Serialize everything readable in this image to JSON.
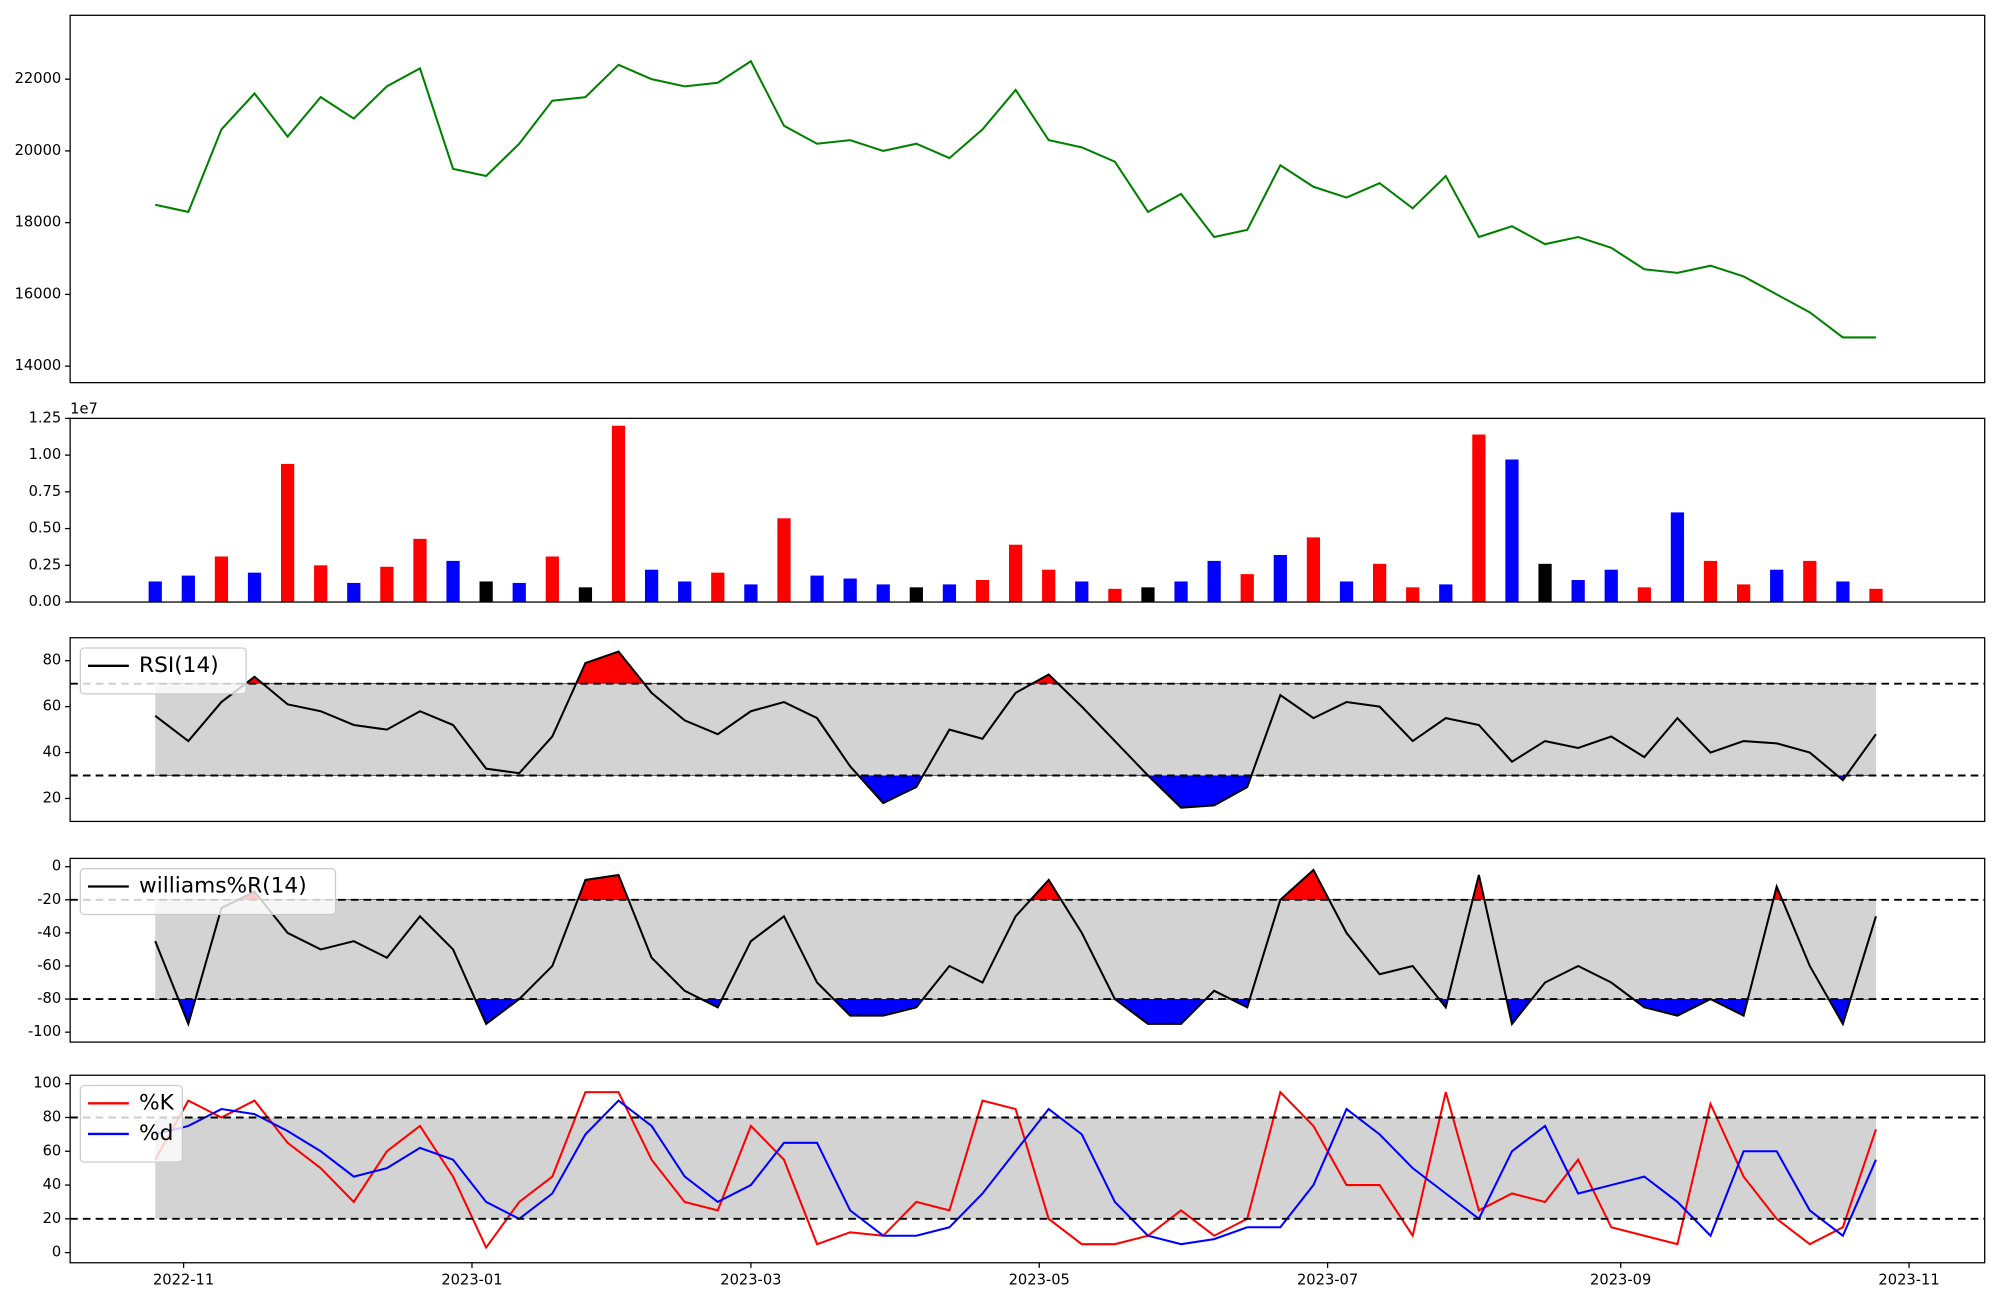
{
  "chart_data": [
    {
      "type": "line",
      "x": [
        19291,
        19298,
        19305,
        19312,
        19319,
        19326,
        19333,
        19340,
        19347,
        19354,
        19361,
        19368,
        19375,
        19382,
        19389,
        19396,
        19403,
        19410,
        19417,
        19424,
        19431,
        19438,
        19445,
        19452,
        19459,
        19466,
        19473,
        19480,
        19487,
        19494,
        19501,
        19508,
        19515,
        19522,
        19529,
        19536,
        19543,
        19550,
        19557,
        19564,
        19571,
        19578,
        19585,
        19592,
        19599,
        19606,
        19613,
        19620,
        19627,
        19634,
        19641,
        19648,
        19655
      ],
      "series": [
        {
          "color": "green",
          "values": [
            18500,
            18300,
            20600,
            21600,
            20400,
            21500,
            20900,
            21800,
            22300,
            19500,
            19300,
            20200,
            21400,
            21500,
            22400,
            22000,
            21800,
            21900,
            22500,
            20700,
            20200,
            20300,
            20000,
            20200,
            19800,
            20600,
            21700,
            20300,
            20100,
            19700,
            18300,
            18800,
            17600,
            17800,
            19600,
            19000,
            18700,
            19100,
            18400,
            19300,
            17600,
            17900,
            17400,
            17600,
            17300,
            16700,
            16600,
            16800,
            16500,
            16000,
            15500,
            14800,
            14800
          ]
        }
      ],
      "xlim": [
        19273,
        19678
      ],
      "ylim": [
        13540,
        23780
      ],
      "yticks": [
        14000,
        16000,
        18000,
        20000,
        22000
      ]
    },
    {
      "type": "bar",
      "x": [
        19291,
        19298,
        19305,
        19312,
        19319,
        19326,
        19333,
        19340,
        19347,
        19354,
        19361,
        19368,
        19375,
        19382,
        19389,
        19396,
        19403,
        19410,
        19417,
        19424,
        19431,
        19438,
        19445,
        19452,
        19459,
        19466,
        19473,
        19480,
        19487,
        19494,
        19501,
        19508,
        19515,
        19522,
        19529,
        19536,
        19543,
        19550,
        19557,
        19564,
        19571,
        19578,
        19585,
        19592,
        19599,
        19606,
        19613,
        19620,
        19627,
        19634,
        19641,
        19648,
        19655
      ],
      "values": [
        0.14,
        0.18,
        0.31,
        0.2,
        0.94,
        0.25,
        0.13,
        0.24,
        0.43,
        0.28,
        0.14,
        0.13,
        0.31,
        0.1,
        1.2,
        0.22,
        0.14,
        0.2,
        0.12,
        0.57,
        0.18,
        0.16,
        0.12,
        0.1,
        0.12,
        0.15,
        0.39,
        0.22,
        0.14,
        0.09,
        0.1,
        0.14,
        0.28,
        0.19,
        0.32,
        0.44,
        0.14,
        0.26,
        0.1,
        0.12,
        1.14,
        0.97,
        0.26,
        0.15,
        0.22,
        0.1,
        0.61,
        0.28,
        0.12,
        0.22,
        0.28,
        0.14,
        0.09
      ],
      "colors": [
        "blue",
        "blue",
        "red",
        "blue",
        "red",
        "red",
        "blue",
        "red",
        "red",
        "blue",
        "black",
        "blue",
        "red",
        "black",
        "red",
        "blue",
        "blue",
        "red",
        "blue",
        "red",
        "blue",
        "blue",
        "blue",
        "black",
        "blue",
        "red",
        "red",
        "red",
        "blue",
        "red",
        "black",
        "blue",
        "blue",
        "red",
        "blue",
        "red",
        "blue",
        "red",
        "red",
        "blue",
        "red",
        "blue",
        "black",
        "blue",
        "blue",
        "red",
        "blue",
        "red",
        "red",
        "blue",
        "red",
        "blue",
        "red"
      ],
      "offset_label": "1e7",
      "xlim": [
        19273,
        19678
      ],
      "ylim": [
        0,
        1.25
      ],
      "yticks": [
        {
          "value": 0,
          "label": "0.00"
        },
        0.25,
        {
          "value": 0.5,
          "label": "0.50"
        },
        0.75,
        {
          "value": 1,
          "label": "1.00"
        },
        1.25
      ]
    },
    {
      "type": "line",
      "x": [
        19291,
        19298,
        19305,
        19312,
        19319,
        19326,
        19333,
        19340,
        19347,
        19354,
        19361,
        19368,
        19375,
        19382,
        19389,
        19396,
        19403,
        19410,
        19417,
        19424,
        19431,
        19438,
        19445,
        19452,
        19459,
        19466,
        19473,
        19480,
        19487,
        19494,
        19501,
        19508,
        19515,
        19522,
        19529,
        19536,
        19543,
        19550,
        19557,
        19564,
        19571,
        19578,
        19585,
        19592,
        19599,
        19606,
        19613,
        19620,
        19627,
        19634,
        19641,
        19648,
        19655
      ],
      "series": [
        {
          "name": "RSI(14)",
          "color": "black",
          "values": [
            56,
            45,
            62,
            73,
            61,
            58,
            52,
            50,
            58,
            52,
            33,
            31,
            47,
            79,
            84,
            66,
            54,
            48,
            58,
            62,
            55,
            34,
            18,
            25,
            50,
            46,
            66,
            74,
            60,
            45,
            30,
            16,
            17,
            25,
            65,
            55,
            62,
            60,
            45,
            55,
            52,
            36,
            45,
            42,
            47,
            38,
            55,
            40,
            45,
            44,
            40,
            28,
            48
          ]
        }
      ],
      "levels": [
        30,
        70
      ],
      "band_color": "lightgray",
      "over_color": "red",
      "under_color": "blue",
      "legend": "upper left",
      "xlim": [
        19273,
        19678
      ],
      "ylim": [
        10,
        90
      ],
      "yticks": [
        20,
        40,
        60,
        80
      ]
    },
    {
      "type": "line",
      "x": [
        19291,
        19298,
        19305,
        19312,
        19319,
        19326,
        19333,
        19340,
        19347,
        19354,
        19361,
        19368,
        19375,
        19382,
        19389,
        19396,
        19403,
        19410,
        19417,
        19424,
        19431,
        19438,
        19445,
        19452,
        19459,
        19466,
        19473,
        19480,
        19487,
        19494,
        19501,
        19508,
        19515,
        19522,
        19529,
        19536,
        19543,
        19550,
        19557,
        19564,
        19571,
        19578,
        19585,
        19592,
        19599,
        19606,
        19613,
        19620,
        19627,
        19634,
        19641,
        19648,
        19655
      ],
      "series": [
        {
          "name": "williams%R(14)",
          "color": "black",
          "values": [
            -45,
            -95,
            -25,
            -15,
            -40,
            -50,
            -45,
            -55,
            -30,
            -50,
            -95,
            -80,
            -60,
            -8,
            -5,
            -55,
            -75,
            -85,
            -45,
            -30,
            -70,
            -90,
            -90,
            -85,
            -60,
            -70,
            -30,
            -8,
            -40,
            -80,
            -95,
            -95,
            -75,
            -85,
            -20,
            -2,
            -40,
            -65,
            -60,
            -85,
            -5,
            -95,
            -70,
            -60,
            -70,
            -85,
            -90,
            -80,
            -90,
            -12,
            -60,
            -95,
            -30
          ]
        }
      ],
      "levels": [
        -80,
        -20
      ],
      "band_color": "lightgray",
      "over_color": "red",
      "under_color": "blue",
      "legend": "upper left",
      "xlim": [
        19273,
        19678
      ],
      "ylim": [
        -106,
        5
      ],
      "yticks": [
        -100,
        -80,
        -60,
        -40,
        -20,
        0
      ]
    },
    {
      "type": "line",
      "x": [
        19291,
        19298,
        19305,
        19312,
        19319,
        19326,
        19333,
        19340,
        19347,
        19354,
        19361,
        19368,
        19375,
        19382,
        19389,
        19396,
        19403,
        19410,
        19417,
        19424,
        19431,
        19438,
        19445,
        19452,
        19459,
        19466,
        19473,
        19480,
        19487,
        19494,
        19501,
        19508,
        19515,
        19522,
        19529,
        19536,
        19543,
        19550,
        19557,
        19564,
        19571,
        19578,
        19585,
        19592,
        19599,
        19606,
        19613,
        19620,
        19627,
        19634,
        19641,
        19648,
        19655
      ],
      "series": [
        {
          "name": "%K",
          "color": "red",
          "values": [
            55,
            90,
            80,
            90,
            65,
            50,
            30,
            60,
            75,
            45,
            3,
            30,
            45,
            95,
            95,
            55,
            30,
            25,
            75,
            55,
            5,
            12,
            10,
            30,
            25,
            90,
            85,
            20,
            5,
            5,
            10,
            25,
            10,
            20,
            95,
            75,
            40,
            40,
            10,
            95,
            25,
            35,
            30,
            55,
            15,
            10,
            5,
            88,
            45,
            20,
            5,
            15,
            73
          ]
        },
        {
          "name": "%d",
          "color": "blue",
          "values": [
            70,
            75,
            85,
            82,
            72,
            60,
            45,
            50,
            62,
            55,
            30,
            20,
            35,
            70,
            90,
            75,
            45,
            30,
            40,
            65,
            65,
            25,
            10,
            10,
            15,
            35,
            60,
            85,
            70,
            30,
            10,
            5,
            8,
            15,
            15,
            40,
            85,
            70,
            50,
            35,
            20,
            60,
            75,
            35,
            40,
            45,
            30,
            10,
            60,
            60,
            25,
            10,
            55
          ]
        }
      ],
      "levels": [
        20,
        80
      ],
      "band_color": "lightgray",
      "legend": "upper left",
      "xlim": [
        19273,
        19678
      ],
      "ylim": [
        -6,
        105
      ],
      "yticks": [
        0,
        20,
        40,
        60,
        80,
        100
      ],
      "xticks": [
        {
          "value": 19297,
          "label": "2022-11"
        },
        {
          "value": 19358,
          "label": "2023-01"
        },
        {
          "value": 19417,
          "label": "2023-03"
        },
        {
          "value": 19478,
          "label": "2023-05"
        },
        {
          "value": 19539,
          "label": "2023-07"
        },
        {
          "value": 19601,
          "label": "2023-09"
        },
        {
          "value": 19662,
          "label": "2023-11"
        }
      ]
    }
  ]
}
